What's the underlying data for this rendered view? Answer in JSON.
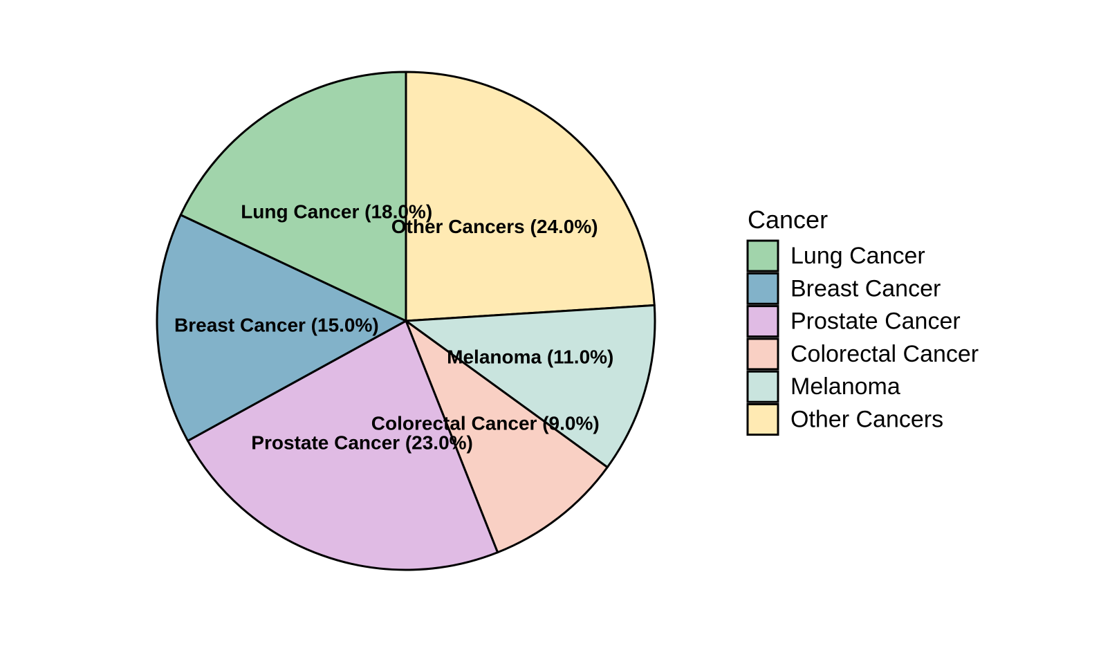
{
  "chart_data": {
    "type": "pie",
    "legend_title": "Cancer",
    "legend_position": "right",
    "start_angle": "12 o'clock, clockwise from Other Cancers",
    "categories": [
      "Lung Cancer",
      "Breast Cancer",
      "Prostate Cancer",
      "Colorectal Cancer",
      "Melanoma",
      "Other Cancers"
    ],
    "values": [
      18.0,
      15.0,
      23.0,
      9.0,
      11.0,
      24.0
    ],
    "labels": [
      "Lung Cancer (18.0%)",
      "Breast Cancer (15.0%)",
      "Prostate Cancer (23.0%)",
      "Colorectal Cancer (9.0%)",
      "Melanoma (11.0%)",
      "Other Cancers (24.0%)"
    ],
    "colors": [
      "#a1d4ab",
      "#82b2c9",
      "#e0bbe4",
      "#f9d0c4",
      "#c9e4de",
      "#ffeab3"
    ]
  }
}
